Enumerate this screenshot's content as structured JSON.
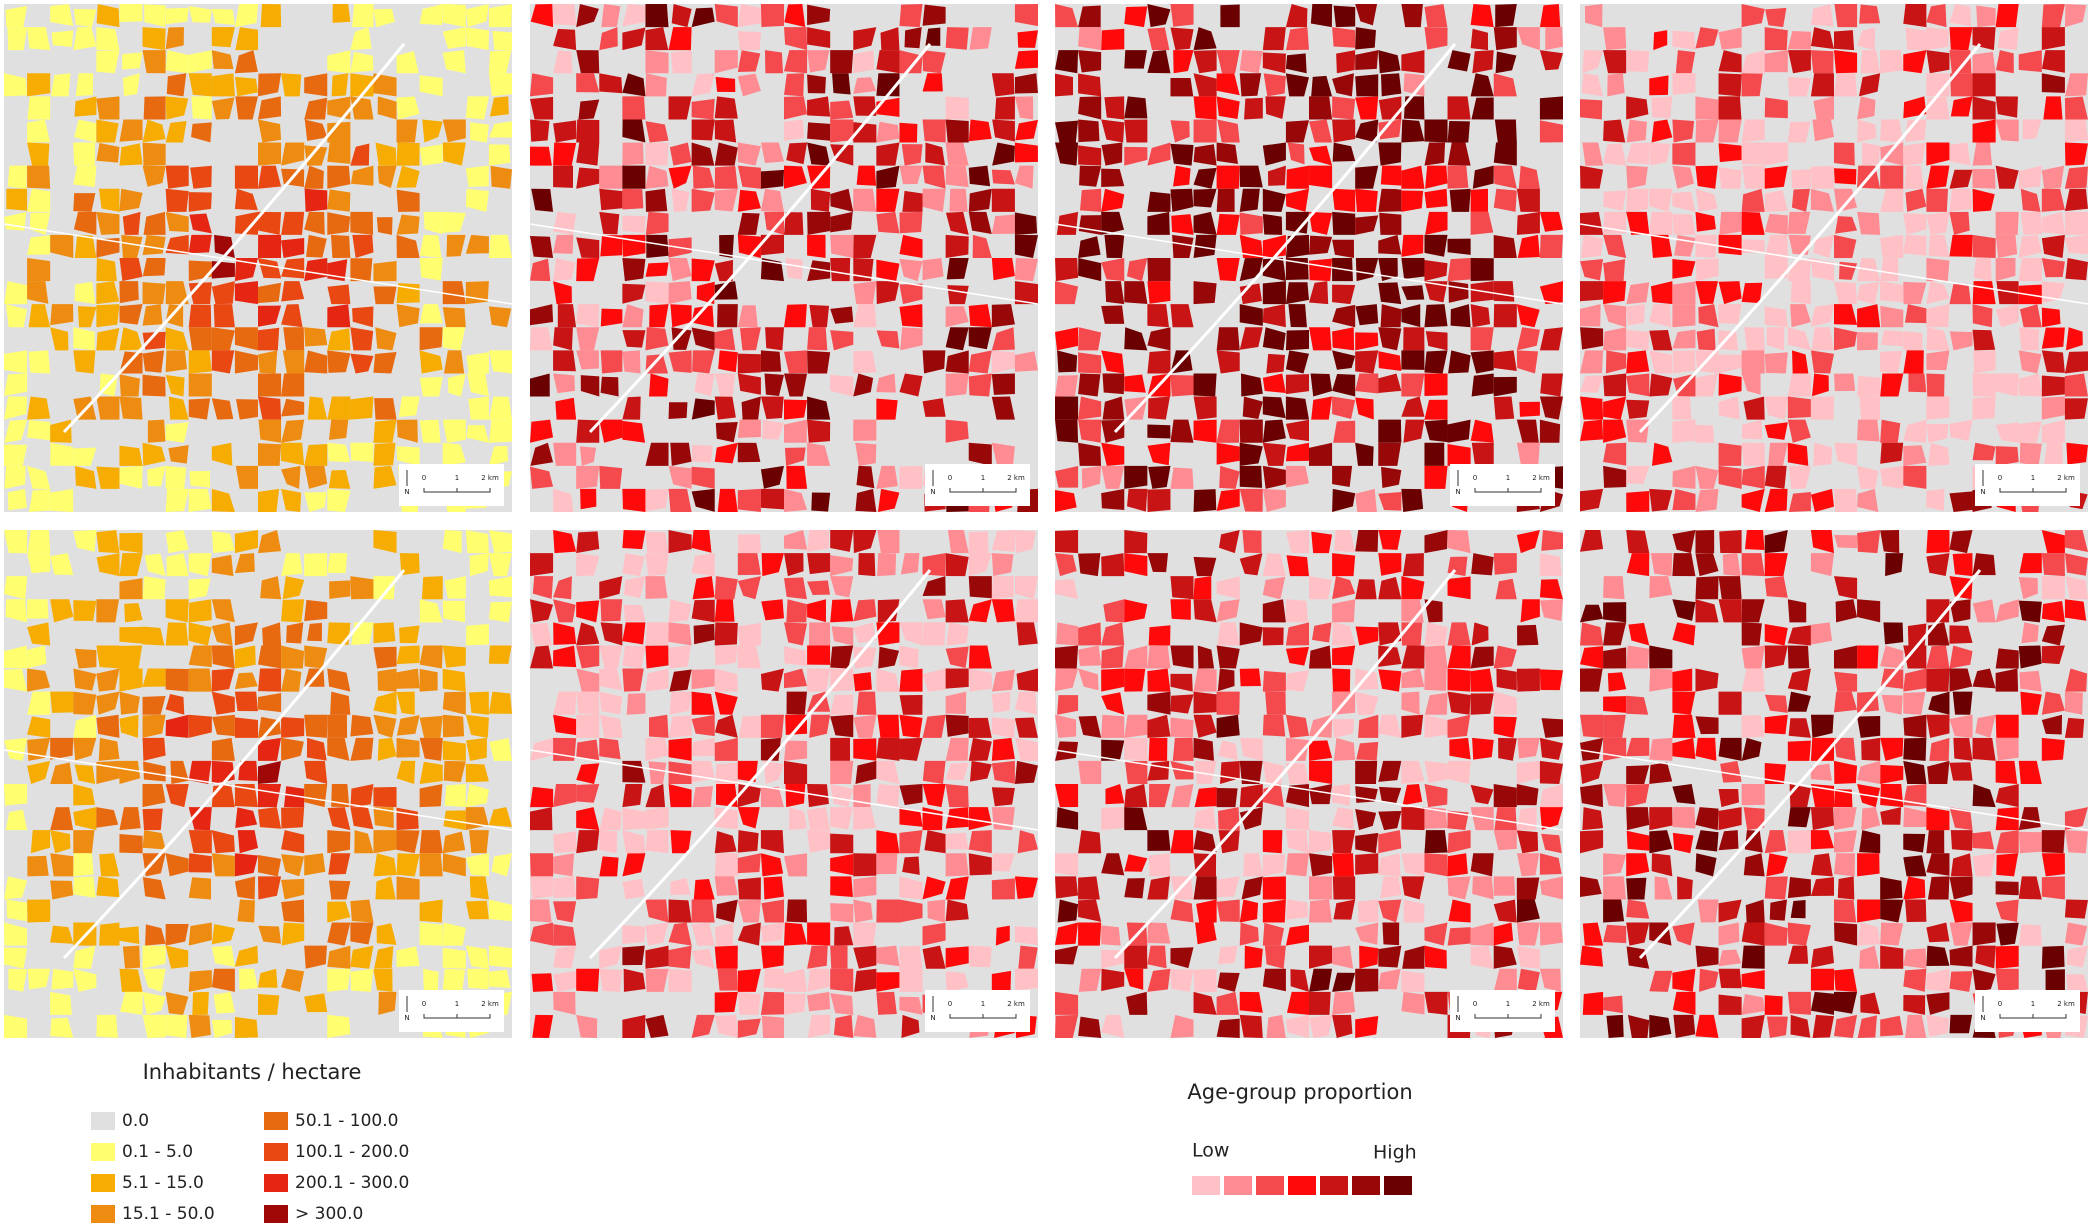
{
  "scale_bar": {
    "ticks": [
      "0",
      "1",
      "2 km"
    ],
    "north": "N"
  },
  "density_legend": {
    "title": "Inhabitants / hectare",
    "classes": [
      {
        "label": "0.0",
        "color": "#e0e0e0"
      },
      {
        "label": "0.1 - 5.0",
        "color": "#ffff70"
      },
      {
        "label": "5.1 - 15.0",
        "color": "#f6ac00"
      },
      {
        "label": "15.1 - 50.0",
        "color": "#ee8c12"
      },
      {
        "label": "50.1 - 100.0",
        "color": "#e86a10"
      },
      {
        "label": "100.1 - 200.0",
        "color": "#ea4812"
      },
      {
        "label": "200.1 - 300.0",
        "color": "#e42612"
      },
      {
        "label": "> 300.0",
        "color": "#a00808"
      }
    ]
  },
  "age_legend": {
    "title": "Age-group proportion",
    "low": "Low",
    "high": "High",
    "colors": [
      "#ffc0c6",
      "#ff8c92",
      "#f44a4e",
      "#ff0a0a",
      "#c81414",
      "#980808",
      "#6a0000"
    ]
  }
}
